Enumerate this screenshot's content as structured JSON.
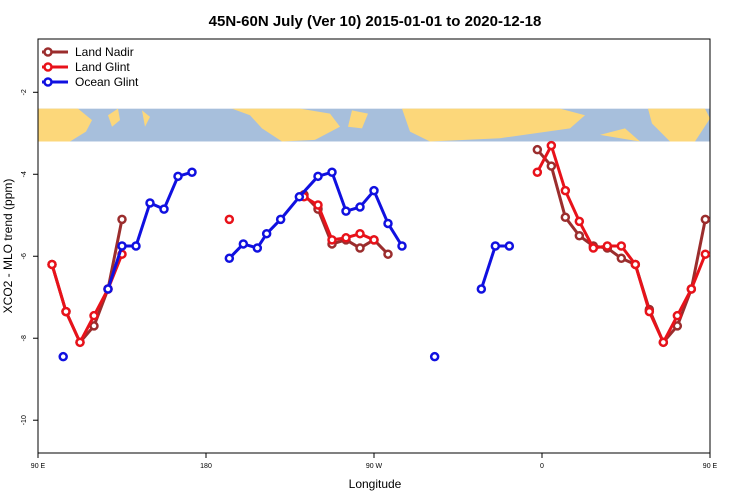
{
  "chart_data": {
    "type": "line",
    "title": "45N-60N July (Ver 10)   2015-01-01 to 2020-12-18",
    "xlabel": "Longitude",
    "ylabel": "XCO2 - MLO trend (ppm)",
    "x_range_deg": [
      90,
      450
    ],
    "ylim": [
      -10.8,
      -0.7
    ],
    "x_ticks": [
      {
        "value": 90,
        "label": "90 E"
      },
      {
        "value": 180,
        "label": "180"
      },
      {
        "value": 270,
        "label": "90 W"
      },
      {
        "value": 360,
        "label": "0"
      },
      {
        "value": 450,
        "label": "90 E"
      },
      {
        "value": 540,
        "label": "180"
      }
    ],
    "y_ticks": [
      {
        "value": -2,
        "label": "-2"
      },
      {
        "value": -4,
        "label": "-4"
      },
      {
        "value": -6,
        "label": "-6"
      },
      {
        "value": -8,
        "label": "-8"
      },
      {
        "value": -10,
        "label": "-10"
      }
    ],
    "legend_position": "top-left",
    "map_band": {
      "y_top": -2.4,
      "y_bottom": -3.2,
      "ocean_color": "#a7bfdc",
      "land_color": "#fcd77a"
    },
    "series": [
      {
        "name": "Land Nadir",
        "color": "#9b2d2d",
        "segments": [
          [
            [
              97.5,
              -6.2
            ],
            [
              105,
              -7.35
            ],
            [
              112.5,
              -8.1
            ],
            [
              120,
              -7.7
            ],
            [
              127.5,
              -6.8
            ],
            [
              135,
              -5.1
            ]
          ],
          [
            [
              232.5,
              -4.5
            ],
            [
              240,
              -4.85
            ],
            [
              247.5,
              -5.7
            ],
            [
              255,
              -5.6
            ],
            [
              262.5,
              -5.8
            ],
            [
              270,
              -5.6
            ],
            [
              277.5,
              -5.95
            ]
          ],
          [
            [
              357.5,
              -3.4
            ],
            [
              365,
              -3.8
            ],
            [
              372.5,
              -5.05
            ],
            [
              380,
              -5.5
            ],
            [
              387.5,
              -5.75
            ],
            [
              395,
              -5.8
            ],
            [
              402.5,
              -6.05
            ],
            [
              410,
              -6.2
            ],
            [
              417.5,
              -7.3
            ],
            [
              425,
              -8.1
            ],
            [
              432.5,
              -7.7
            ],
            [
              440,
              -6.8
            ],
            [
              447.5,
              -5.1
            ]
          ]
        ]
      },
      {
        "name": "Land Glint",
        "color": "#e8121a",
        "segments": [
          [
            [
              97.5,
              -6.2
            ],
            [
              105,
              -7.35
            ],
            [
              112.5,
              -8.1
            ],
            [
              120,
              -7.45
            ],
            [
              127.5,
              -6.8
            ],
            [
              135,
              -5.95
            ]
          ],
          [
            [
              192.5,
              -5.1
            ]
          ],
          [
            [
              232.5,
              -4.55
            ],
            [
              240,
              -4.75
            ],
            [
              247.5,
              -5.6
            ],
            [
              255,
              -5.55
            ],
            [
              262.5,
              -5.45
            ],
            [
              270,
              -5.6
            ]
          ],
          [
            [
              357.5,
              -3.95
            ],
            [
              365,
              -3.3
            ],
            [
              372.5,
              -4.4
            ],
            [
              380,
              -5.15
            ],
            [
              387.5,
              -5.8
            ],
            [
              395,
              -5.75
            ],
            [
              402.5,
              -5.75
            ],
            [
              410,
              -6.2
            ],
            [
              417.5,
              -7.35
            ],
            [
              425,
              -8.1
            ],
            [
              432.5,
              -7.45
            ],
            [
              440,
              -6.8
            ],
            [
              447.5,
              -5.95
            ]
          ]
        ]
      },
      {
        "name": "Ocean Glint",
        "color": "#1010e0",
        "segments": [
          [
            [
              103.5,
              -8.45
            ]
          ],
          [
            [
              127.5,
              -6.8
            ],
            [
              135,
              -5.75
            ],
            [
              142.5,
              -5.75
            ],
            [
              150,
              -4.7
            ],
            [
              157.5,
              -4.85
            ],
            [
              165,
              -4.05
            ],
            [
              172.5,
              -3.95
            ]
          ],
          [
            [
              192.5,
              -6.05
            ],
            [
              200,
              -5.7
            ],
            [
              207.5,
              -5.8
            ],
            [
              212.5,
              -5.45
            ],
            [
              220,
              -5.1
            ],
            [
              230,
              -4.55
            ],
            [
              240,
              -4.05
            ],
            [
              247.5,
              -3.95
            ],
            [
              255,
              -4.9
            ],
            [
              262.5,
              -4.8
            ],
            [
              270,
              -4.4
            ],
            [
              277.5,
              -5.2
            ],
            [
              285,
              -5.75
            ]
          ],
          [
            [
              302.5,
              -8.45
            ]
          ],
          [
            [
              327.5,
              -6.8
            ],
            [
              335,
              -5.75
            ],
            [
              342.5,
              -5.75
            ]
          ]
        ]
      }
    ]
  }
}
